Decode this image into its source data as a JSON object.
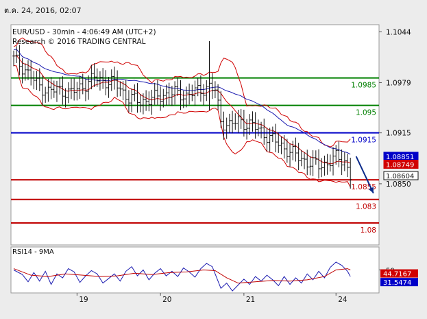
{
  "header": {
    "timestamp": "ต.ค. 24, 2016, 02:07"
  },
  "chart_title": {
    "line1": "EUR/USD - 30min - 4:06:49 AM (UTC+2)",
    "line2": "Research © 2016 TRADING CENTRAL"
  },
  "chart_data": [
    {
      "type": "line",
      "title": "EUR/USD - 30min - 4:06:49 AM (UTC+2)",
      "x_categories": [
        "19",
        "20",
        "21",
        "24"
      ],
      "ylim": [
        1.0772,
        1.1053
      ],
      "y_ticks": [
        "1.1044",
        "1.0979",
        "1.0915",
        "1.0850"
      ],
      "price_path": [
        [
          0,
          1.1009
        ],
        [
          4,
          1.0996
        ],
        [
          8,
          1.0977
        ],
        [
          12,
          1.0968
        ],
        [
          16,
          1.097
        ],
        [
          20,
          1.0966
        ],
        [
          24,
          1.0975
        ],
        [
          28,
          1.0985
        ],
        [
          32,
          1.0981
        ],
        [
          36,
          1.0976
        ],
        [
          40,
          1.0959
        ],
        [
          44,
          1.0955
        ],
        [
          48,
          1.0958
        ],
        [
          52,
          1.0964
        ],
        [
          56,
          1.0965
        ],
        [
          60,
          1.0963
        ],
        [
          64,
          1.0968
        ],
        [
          68,
          1.0975
        ],
        [
          70,
          1.0968
        ],
        [
          72,
          1.093
        ],
        [
          75,
          1.0925
        ],
        [
          78,
          1.093
        ],
        [
          82,
          1.0926
        ],
        [
          86,
          1.0917
        ],
        [
          90,
          1.0906
        ],
        [
          94,
          1.0896
        ],
        [
          98,
          1.0886
        ],
        [
          102,
          1.0878
        ],
        [
          106,
          1.0873
        ],
        [
          109,
          1.0877
        ],
        [
          112,
          1.0883
        ],
        [
          115,
          1.088
        ],
        [
          117,
          1.086
        ]
      ],
      "spike": {
        "x": 68,
        "high": 1.1032,
        "low": 1.0944
      },
      "horizontal_levels": [
        {
          "label": "1.0985",
          "value": 1.0985,
          "color": "#008000"
        },
        {
          "label": "1.095",
          "value": 1.095,
          "color": "#008000"
        },
        {
          "label": "1.0915",
          "value": 1.0915,
          "color": "#0000c8"
        },
        {
          "label": "1.0855",
          "value": 1.0855,
          "color": "#c00000"
        },
        {
          "label": "1.083",
          "value": 1.083,
          "color": "#c00000"
        },
        {
          "label": "1.08",
          "value": 1.08,
          "color": "#c00000"
        }
      ],
      "price_tags": [
        {
          "label": "1.08851",
          "value": 1.08851,
          "color": "#0000c8"
        },
        {
          "label": "1.08749",
          "value": 1.08749,
          "color": "#d00000"
        },
        {
          "label": "1.08604",
          "value": 1.08604,
          "color": "#111111"
        }
      ],
      "forecast_arrow": {
        "from": [
          119,
          1.0885
        ],
        "to": [
          125,
          1.0838
        ],
        "color": "#0a2a8a"
      }
    },
    {
      "type": "line",
      "title": "RSI14 - 9MA",
      "ylim": [
        15,
        85
      ],
      "y_ticks": [
        "50"
      ],
      "series": [
        {
          "values": [
            [
              0,
              50
            ],
            [
              3,
              43
            ],
            [
              5,
              32
            ],
            [
              7,
              46
            ],
            [
              9,
              33
            ],
            [
              11,
              48
            ],
            [
              13,
              28
            ],
            [
              15,
              44
            ],
            [
              17,
              38
            ],
            [
              19,
              52
            ],
            [
              21,
              47
            ],
            [
              23,
              31
            ],
            [
              25,
              41
            ],
            [
              27,
              49
            ],
            [
              29,
              44
            ],
            [
              31,
              30
            ],
            [
              33,
              37
            ],
            [
              35,
              44
            ],
            [
              37,
              33
            ],
            [
              39,
              48
            ],
            [
              41,
              55
            ],
            [
              43,
              41
            ],
            [
              45,
              50
            ],
            [
              47,
              35
            ],
            [
              49,
              45
            ],
            [
              51,
              52
            ],
            [
              53,
              41
            ],
            [
              55,
              48
            ],
            [
              57,
              40
            ],
            [
              59,
              53
            ],
            [
              61,
              47
            ],
            [
              63,
              39
            ],
            [
              65,
              52
            ],
            [
              67,
              60
            ],
            [
              69,
              55
            ],
            [
              70,
              44
            ],
            [
              72,
              22
            ],
            [
              74,
              30
            ],
            [
              76,
              18
            ],
            [
              78,
              27
            ],
            [
              80,
              36
            ],
            [
              82,
              28
            ],
            [
              84,
              40
            ],
            [
              86,
              33
            ],
            [
              88,
              42
            ],
            [
              90,
              35
            ],
            [
              92,
              26
            ],
            [
              94,
              40
            ],
            [
              96,
              28
            ],
            [
              98,
              38
            ],
            [
              100,
              30
            ],
            [
              102,
              44
            ],
            [
              104,
              35
            ],
            [
              106,
              48
            ],
            [
              108,
              38
            ],
            [
              110,
              54
            ],
            [
              112,
              62
            ],
            [
              114,
              57
            ],
            [
              116,
              48
            ],
            [
              117,
              40
            ]
          ],
          "color": "#1a1ab0"
        },
        {
          "values": [
            [
              0,
              52
            ],
            [
              6,
              42
            ],
            [
              12,
              40
            ],
            [
              18,
              44
            ],
            [
              24,
              42
            ],
            [
              30,
              40
            ],
            [
              36,
              41
            ],
            [
              42,
              45
            ],
            [
              48,
              43
            ],
            [
              54,
              46
            ],
            [
              60,
              47
            ],
            [
              66,
              50
            ],
            [
              70,
              49
            ],
            [
              74,
              38
            ],
            [
              78,
              30
            ],
            [
              84,
              32
            ],
            [
              90,
              34
            ],
            [
              96,
              33
            ],
            [
              102,
              35
            ],
            [
              108,
              40
            ],
            [
              112,
              50
            ],
            [
              116,
              52
            ],
            [
              117,
              50
            ]
          ],
          "color": "#c00000"
        }
      ],
      "value_tags": [
        {
          "label": "44.7167",
          "value": 44.7167,
          "color": "#d00000"
        },
        {
          "label": "31.5474",
          "value": 31.5474,
          "color": "#0000c8"
        }
      ]
    }
  ]
}
